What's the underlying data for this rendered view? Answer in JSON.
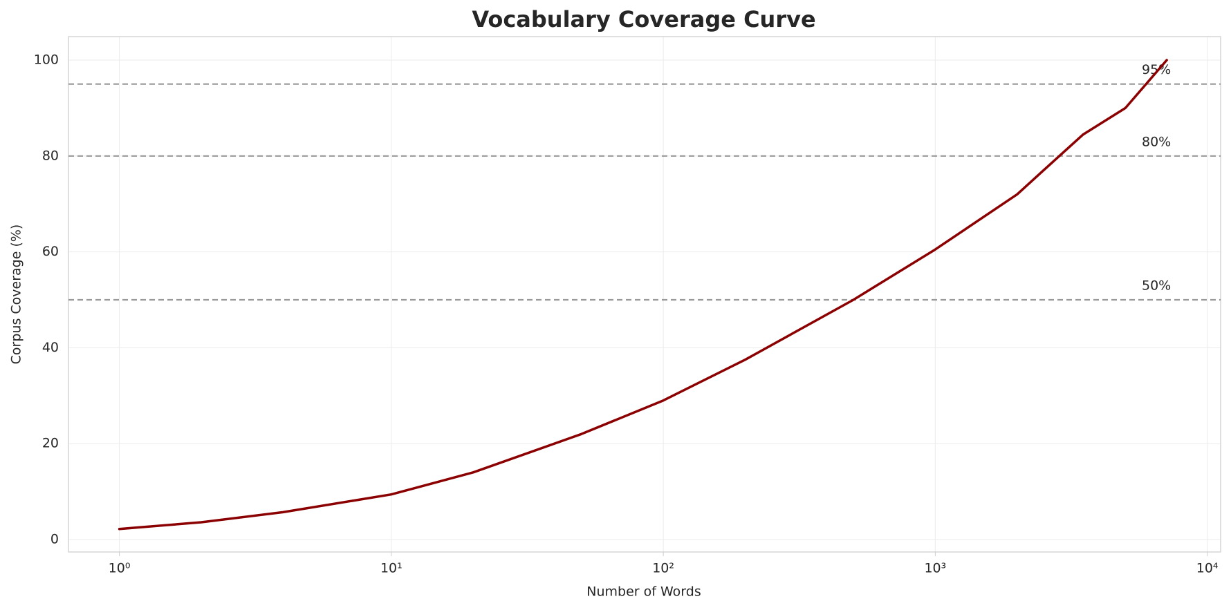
{
  "chart_data": {
    "type": "line",
    "title": "Vocabulary Coverage Curve",
    "x_label": "Number of Words",
    "y_label": "Corpus Coverage (%)",
    "x": [
      1,
      2,
      4,
      10,
      20,
      50,
      100,
      200,
      500,
      1000,
      2000,
      2500,
      3500,
      5000,
      7100
    ],
    "values": [
      2.2,
      3.6,
      5.7,
      9.4,
      14,
      22,
      29,
      37.5,
      50,
      60.5,
      72,
      77,
      84.5,
      90,
      100
    ],
    "color": "#8b0000",
    "xscale": "log",
    "xlim": [
      0.65,
      11200
    ],
    "ylim": [
      -2.6,
      104.9
    ],
    "xticks": [
      {
        "value": 1,
        "label": "10⁰"
      },
      {
        "value": 10,
        "label": "10¹"
      },
      {
        "value": 100,
        "label": "10²"
      },
      {
        "value": 1000,
        "label": "10³"
      },
      {
        "value": 10000,
        "label": "10⁴"
      }
    ],
    "yticks": [
      0,
      20,
      40,
      60,
      80,
      100
    ],
    "grid": true,
    "reference_lines": [
      {
        "value": 50,
        "label": "50%"
      },
      {
        "value": 80,
        "label": "80%"
      },
      {
        "value": 95,
        "label": "95%"
      }
    ],
    "reference_color": "#999999"
  }
}
